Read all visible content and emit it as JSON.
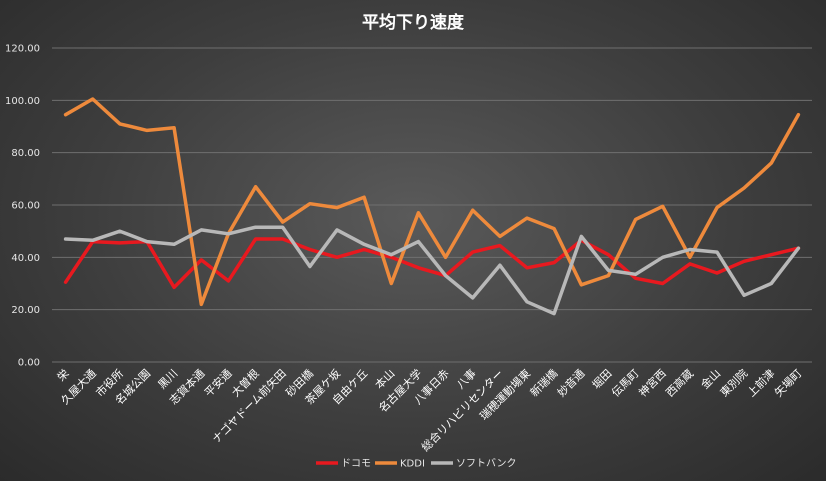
{
  "chart_data": {
    "type": "line",
    "title": "平均下り速度",
    "xlabel": "",
    "ylabel": "",
    "ylim": [
      0,
      120
    ],
    "yticks": [
      "0.00",
      "20.00",
      "40.00",
      "60.00",
      "80.00",
      "100.00",
      "120.00"
    ],
    "grid": true,
    "legend_position": "bottom",
    "categories": [
      "栄",
      "久屋大通",
      "市役所",
      "名城公園",
      "黒川",
      "志賀本通",
      "平安通",
      "大曽根",
      "ナゴヤドーム前矢田",
      "砂田橋",
      "茶屋ケ坂",
      "自由ケ丘",
      "本山",
      "名古屋大学",
      "八事日赤",
      "八事",
      "総合リハビリセンター",
      "瑞穂運動場東",
      "新瑞橋",
      "妙音通",
      "堀田",
      "伝馬町",
      "神宮西",
      "西高蔵",
      "金山",
      "東別院",
      "上前津",
      "矢場町"
    ],
    "series": [
      {
        "name": "ドコモ",
        "color": "#e8191f",
        "values": [
          30.5,
          46.0,
          45.5,
          46.0,
          28.5,
          39.0,
          31.0,
          47.0,
          47.0,
          43.0,
          40.0,
          43.0,
          40.0,
          36.0,
          33.0,
          42.0,
          44.5,
          36.0,
          38.0,
          46.5,
          41.0,
          32.0,
          30.0,
          37.5,
          34.0,
          38.5,
          41.0,
          43.5
        ]
      },
      {
        "name": "KDDI",
        "color": "#ee8a3c",
        "values": [
          94.5,
          100.5,
          91.0,
          88.5,
          89.5,
          22.0,
          49.0,
          67.0,
          53.5,
          60.5,
          59.0,
          63.0,
          30.0,
          57.0,
          40.0,
          58.0,
          48.0,
          55.0,
          51.0,
          29.5,
          33.0,
          54.5,
          59.5,
          40.0,
          59.0,
          66.5,
          76.0,
          94.5
        ]
      },
      {
        "name": "ソフトバンク",
        "color": "#b8b8b8",
        "values": [
          47.0,
          46.5,
          50.0,
          46.0,
          45.0,
          50.5,
          49.0,
          51.5,
          51.5,
          36.5,
          50.5,
          45.0,
          41.0,
          46.0,
          33.0,
          24.5,
          37.0,
          23.0,
          18.5,
          48.0,
          35.0,
          33.5,
          40.0,
          43.0,
          42.0,
          25.5,
          30.0,
          43.5
        ]
      }
    ]
  }
}
